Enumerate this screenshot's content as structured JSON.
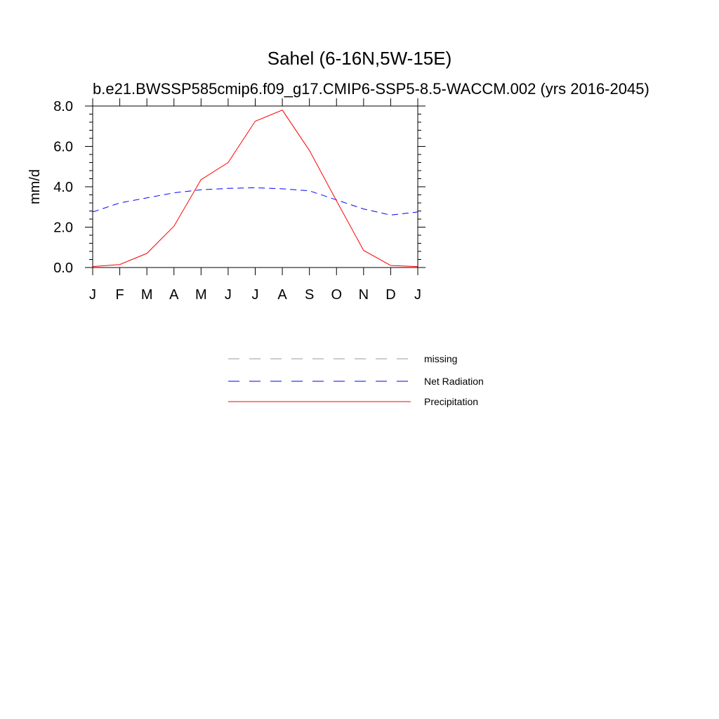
{
  "chart_data": {
    "type": "line",
    "title": "Sahel (6-16N,5W-15E)",
    "subtitle": "b.e21.BWSSP585cmip6.f09_g17.CMIP6-SSP5-8.5-WACCM.002 (yrs 2016-2045)",
    "xlabel": "",
    "ylabel": "mm/d",
    "categories": [
      "J",
      "F",
      "M",
      "A",
      "M",
      "J",
      "J",
      "A",
      "S",
      "O",
      "N",
      "D",
      "J"
    ],
    "ylim": [
      0,
      8
    ],
    "yticks": [
      "0.0",
      "2.0",
      "4.0",
      "6.0",
      "8.0"
    ],
    "ytick_values": [
      0,
      2,
      4,
      6,
      8
    ],
    "grid": false,
    "legend_position": "bottom-center",
    "series": [
      {
        "name": "Net Radiation",
        "color": "#0000ff",
        "style": "dashed",
        "values": [
          2.75,
          3.2,
          3.45,
          3.7,
          3.85,
          3.92,
          3.95,
          3.9,
          3.8,
          3.35,
          2.9,
          2.6,
          2.75
        ]
      },
      {
        "name": "Precipitation",
        "color": "#ff0000",
        "style": "solid",
        "values": [
          0.05,
          0.15,
          0.7,
          2.05,
          4.35,
          5.2,
          7.25,
          7.8,
          5.8,
          3.3,
          0.85,
          0.1,
          0.05
        ]
      }
    ],
    "legend": [
      {
        "label": "missing",
        "color": "#999999",
        "style": "dashed"
      },
      {
        "label": "Net Radiation",
        "color": "#0000ff",
        "style": "dashed"
      },
      {
        "label": "Precipitation",
        "color": "#ff0000",
        "style": "solid"
      }
    ]
  }
}
